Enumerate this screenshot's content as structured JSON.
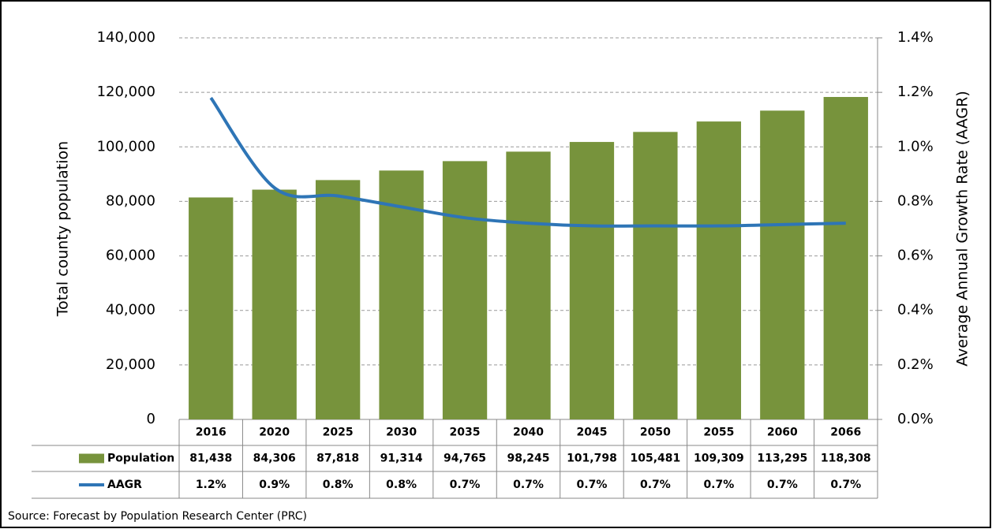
{
  "chart_data": {
    "type": "bar-line",
    "source": "Source: Forecast by Population Research Center (PRC)",
    "y_label": "Total county population",
    "y2_label": "Average Annual Growth Rate (AAGR)",
    "categories": [
      "2016",
      "2020",
      "2025",
      "2030",
      "2035",
      "2040",
      "2045",
      "2050",
      "2055",
      "2060",
      "2066"
    ],
    "series": [
      {
        "name": "Population",
        "type": "bar",
        "color": "#77933c",
        "values": [
          81438,
          84306,
          87818,
          91314,
          94765,
          98245,
          101798,
          105481,
          109309,
          113295,
          118308
        ],
        "value_labels": [
          "81,438",
          "84,306",
          "87,818",
          "91,314",
          "94,765",
          "98,245",
          "101,798",
          "105,481",
          "109,309",
          "113,295",
          "118,308"
        ]
      },
      {
        "name": "AAGR",
        "type": "line",
        "color": "#2e75b6",
        "axis": "y2",
        "values": [
          1.18,
          0.85,
          0.82,
          0.78,
          0.74,
          0.72,
          0.71,
          0.71,
          0.71,
          0.715,
          0.72
        ],
        "value_labels": [
          "1.2%",
          "0.9%",
          "0.8%",
          "0.8%",
          "0.7%",
          "0.7%",
          "0.7%",
          "0.7%",
          "0.7%",
          "0.7%",
          "0.7%"
        ]
      }
    ],
    "ylim": [
      0,
      140000
    ],
    "yticks": [
      0,
      {
        "value": 20000,
        "label": "20,000"
      },
      {
        "value": 40000,
        "label": "40,000"
      },
      {
        "value": 60000,
        "label": "60,000"
      },
      {
        "value": 80000,
        "label": "80,000"
      },
      {
        "value": 100000,
        "label": "100,000"
      },
      {
        "value": 120000,
        "label": "120,000"
      },
      {
        "value": 140000,
        "label": "140,000"
      }
    ],
    "y2lim": [
      0,
      1.4
    ],
    "y2ticks": [
      {
        "value": 0,
        "label": "0.0%"
      },
      {
        "value": 0.2,
        "label": "0.2%"
      },
      {
        "value": 0.4,
        "label": "0.4%"
      },
      {
        "value": 0.6,
        "label": "0.6%"
      },
      {
        "value": 0.8,
        "label": "0.8%"
      },
      {
        "value": 1.0,
        "label": "1.0%"
      },
      {
        "value": 1.2,
        "label": "1.2%"
      },
      {
        "value": 1.4,
        "label": "1.4%"
      }
    ],
    "grid": true
  }
}
